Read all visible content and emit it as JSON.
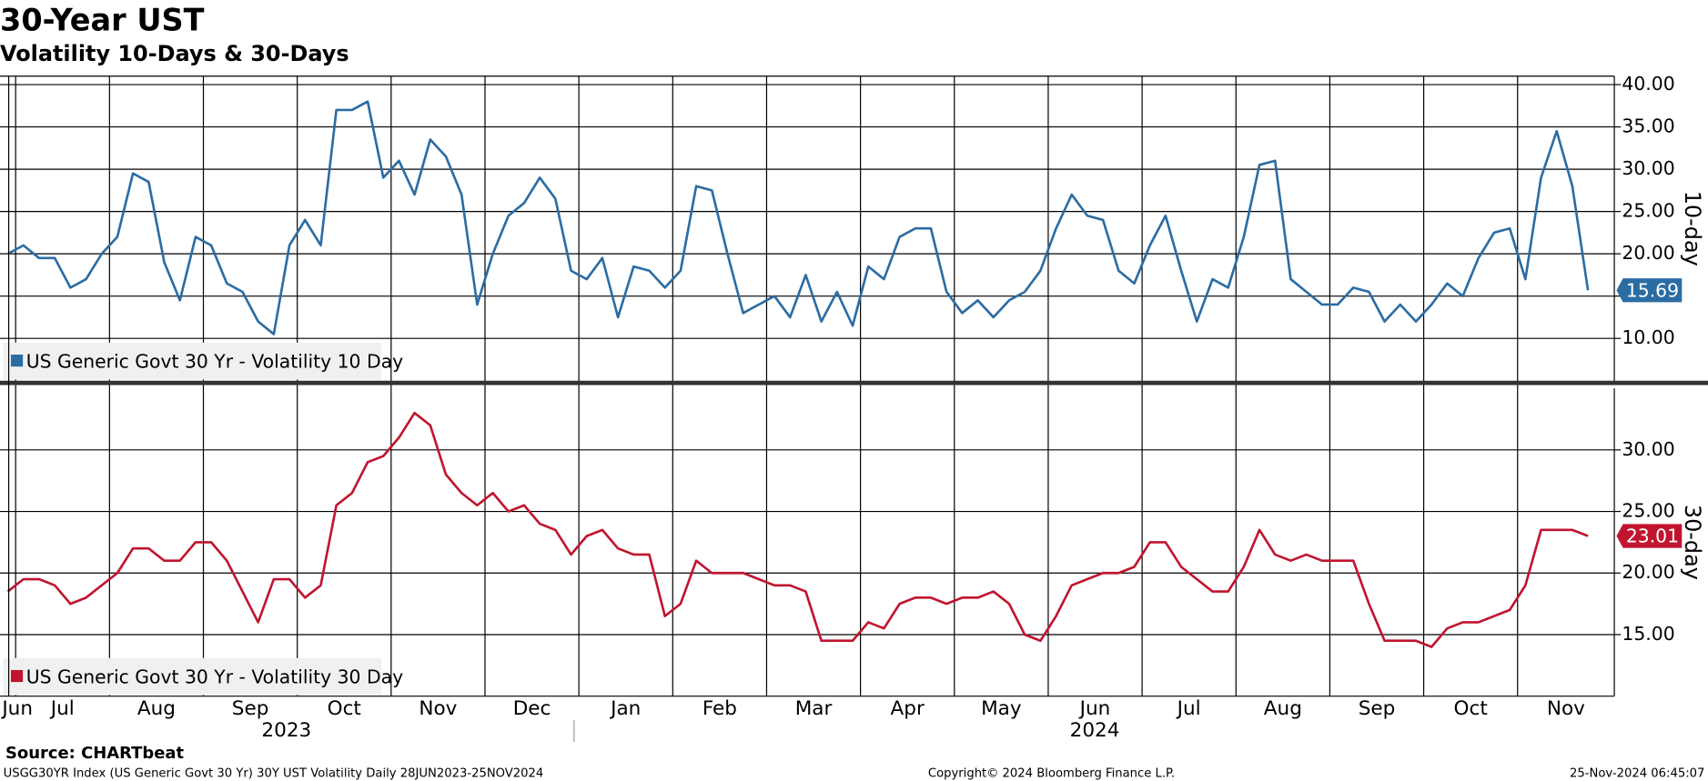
{
  "chart_data": {
    "type": "line",
    "title": "30-Year UST",
    "subtitle": "Volatility 10-Days & 30-Days",
    "categories": [
      "Jun",
      "Jul",
      null,
      null,
      null,
      null,
      null,
      "Aug",
      null,
      null,
      null,
      null,
      null,
      "Sep",
      null,
      null,
      null,
      null,
      null,
      "Oct",
      null,
      null,
      null,
      null,
      null,
      "Nov",
      null,
      null,
      null,
      null,
      null,
      "Dec",
      null,
      null,
      null,
      null,
      null,
      "Jan",
      null,
      null,
      null,
      null,
      null,
      "Feb",
      null,
      null,
      null,
      null,
      null,
      "Mar",
      null,
      null,
      null,
      null,
      null,
      "Apr",
      null,
      null,
      null,
      null,
      null,
      "May",
      null,
      null,
      null,
      null,
      null,
      "Jun",
      null,
      null,
      null,
      null,
      null,
      "Jul",
      null,
      null,
      null,
      null,
      null,
      "Aug",
      null,
      null,
      null,
      null,
      null,
      "Sep",
      null,
      null,
      null,
      null,
      null,
      "Oct",
      null,
      null,
      null,
      null,
      null,
      "Nov",
      null,
      null,
      null,
      null
    ],
    "year_labels": [
      "2023",
      "2024"
    ],
    "panels": [
      {
        "y_label": "10-day",
        "ylim": [
          5,
          41
        ],
        "yticks": [
          {
            "value": 10,
            "label": "10.00"
          },
          {
            "value": 15,
            "label": "15.00"
          },
          {
            "value": 20,
            "label": "20.00"
          },
          {
            "value": 25,
            "label": "25.00"
          },
          {
            "value": 30,
            "label": "30.00"
          },
          {
            "value": 35,
            "label": "35.00"
          },
          {
            "value": 40,
            "label": "40.00"
          }
        ],
        "series": [
          {
            "name": "US Generic Govt 30 Yr - Volatility 10 Day",
            "color": "#2b6ca3",
            "values": [
              20,
              21,
              19.5,
              19.5,
              16,
              17,
              20,
              22,
              29.5,
              28.5,
              19,
              14.5,
              22,
              21,
              16.5,
              15.5,
              12,
              10.5,
              21,
              24,
              21,
              37,
              37,
              38,
              29,
              31,
              27,
              33.5,
              31.5,
              27,
              14,
              20,
              24.5,
              26,
              29,
              26.5,
              18,
              17,
              19.5,
              12.5,
              18.5,
              18,
              16,
              18,
              28,
              27.5,
              20,
              13,
              14,
              15,
              12.5,
              17.5,
              12,
              15.5,
              11.5,
              18.5,
              17,
              22,
              23,
              23,
              15.5,
              13,
              14.5,
              12.5,
              14.5,
              15.5,
              18,
              23,
              27,
              24.5,
              24,
              18,
              16.5,
              21,
              24.5,
              18,
              12,
              17,
              16,
              22,
              30.5,
              31,
              17,
              15.5,
              14,
              14,
              16,
              15.5,
              12,
              14,
              12,
              14,
              16.5,
              15,
              19.5,
              22.5,
              23,
              17,
              29,
              34.5,
              28,
              15.69
            ]
          }
        ]
      },
      {
        "y_label": "30-day",
        "ylim": [
          10,
          35
        ],
        "yticks": [
          {
            "value": 15,
            "label": "15.00"
          },
          {
            "value": 20,
            "label": "20.00"
          },
          {
            "value": 25,
            "label": "25.00"
          },
          {
            "value": 30,
            "label": "30.00"
          }
        ],
        "series": [
          {
            "name": "US Generic Govt 30 Yr - Volatility 30 Day",
            "color": "#c0152f",
            "values": [
              18.5,
              19.5,
              19.5,
              19,
              17.5,
              18,
              19,
              20,
              22,
              22,
              21,
              21,
              22.5,
              22.5,
              21,
              18.5,
              16,
              19.5,
              19.5,
              18,
              19,
              25.5,
              26.5,
              29,
              29.5,
              31,
              33,
              32,
              28,
              26.5,
              25.5,
              26.5,
              25,
              25.5,
              24,
              23.5,
              21.5,
              23,
              23.5,
              22,
              21.5,
              21.5,
              16.5,
              17.5,
              21,
              20,
              20,
              20,
              19.5,
              19,
              19,
              18.5,
              14.5,
              14.5,
              14.5,
              16,
              15.5,
              17.5,
              18,
              18,
              17.5,
              18,
              18,
              18.5,
              17.5,
              15,
              14.5,
              16.5,
              19,
              19.5,
              20,
              20,
              20.5,
              22.5,
              22.5,
              20.5,
              19.5,
              18.5,
              18.5,
              20.5,
              23.5,
              21.5,
              21,
              21.5,
              21,
              21,
              21,
              17.5,
              14.5,
              14.5,
              14.5,
              14,
              15.5,
              16,
              16,
              16.5,
              17,
              19,
              23.5,
              23.5,
              23.5,
              23.01
            ]
          }
        ]
      }
    ]
  },
  "footer": {
    "source": "Source: CHARTbeat",
    "description": "USGG30YR Index (US Generic Govt 30 Yr) 30Y UST Volatility  Daily 28JUN2023-25NOV2024",
    "copyright": "Copyright© 2024 Bloomberg Finance L.P.",
    "timestamp": "25-Nov-2024 06:45:07"
  }
}
